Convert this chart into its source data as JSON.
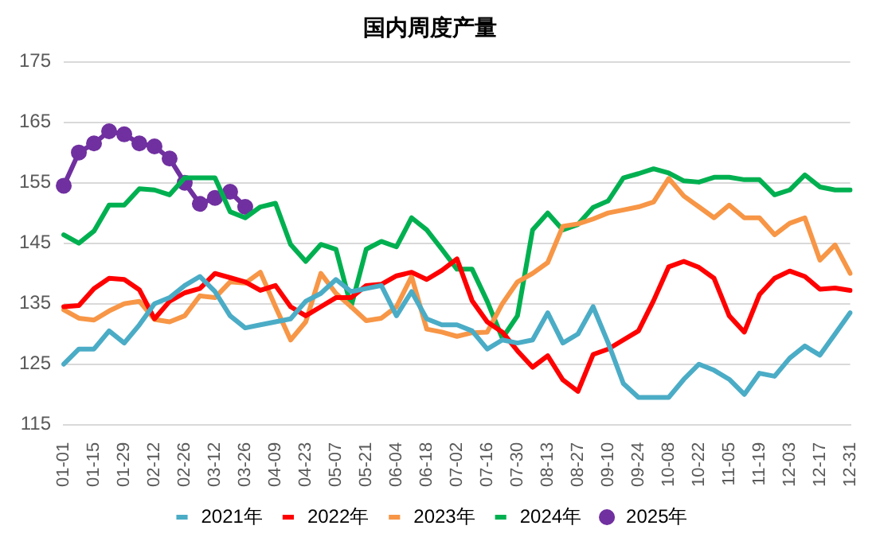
{
  "chart_data": {
    "type": "line",
    "title": "国内周度产量",
    "categories": [
      "01-01",
      null,
      "01-15",
      null,
      "01-29",
      null,
      "02-12",
      null,
      "02-26",
      null,
      "03-12",
      null,
      "03-26",
      null,
      "04-09",
      null,
      "04-23",
      null,
      "05-07",
      null,
      "05-21",
      null,
      "06-04",
      null,
      "06-18",
      null,
      "07-02",
      null,
      "07-16",
      null,
      "07-30",
      null,
      "08-13",
      null,
      "08-27",
      null,
      "09-10",
      null,
      "09-24",
      null,
      "10-08",
      null,
      "10-22",
      null,
      "11-05",
      null,
      "11-19",
      null,
      "12-03",
      null,
      "12-17",
      null,
      "12-31"
    ],
    "series": [
      {
        "name": "2021年",
        "color": "#4bacc6",
        "marker": "none",
        "values": [
          125,
          127.5,
          127.5,
          130.5,
          128.5,
          131.5,
          135,
          136,
          138,
          139.5,
          137,
          133,
          131,
          131.5,
          132,
          132.5,
          135.4,
          136.7,
          139,
          137,
          137.5,
          138,
          133,
          137,
          132.5,
          131.5,
          131.5,
          130.5,
          127.5,
          129,
          128.5,
          129,
          133.5,
          128.5,
          130,
          134.5,
          128.5,
          121.8,
          119.5,
          119.5,
          119.5,
          122.5,
          125,
          124,
          122.5,
          120,
          123.5,
          123,
          126,
          128,
          126.5,
          130,
          133.5
        ]
      },
      {
        "name": "2022年",
        "color": "#ff0000",
        "marker": "none",
        "values": [
          134.5,
          134.7,
          137.5,
          139.2,
          139,
          137.3,
          132.5,
          135.4,
          136.8,
          137.5,
          140,
          139.3,
          138.6,
          137.2,
          138,
          134.5,
          133,
          134.5,
          136,
          136,
          138,
          138.2,
          139.6,
          140.2,
          139,
          140.5,
          142.4,
          135.5,
          132,
          130.3,
          127.2,
          124.5,
          126.4,
          122.4,
          120.5,
          126.6,
          127.5,
          129,
          130.5,
          135.5,
          141.1,
          142,
          141,
          139.2,
          133,
          130.3,
          136.5,
          139.2,
          140.4,
          139.5,
          137.4,
          137.6,
          137.2
        ]
      },
      {
        "name": "2023年",
        "color": "#f79646",
        "marker": "none",
        "values": [
          134,
          132.6,
          132.3,
          133.8,
          135,
          135.4,
          132.4,
          132,
          133,
          136.3,
          136,
          138.6,
          138.4,
          140.2,
          134.5,
          129,
          132,
          140,
          136.7,
          134.5,
          132.2,
          132.6,
          134.5,
          139.5,
          130.8,
          130.3,
          129.6,
          130.2,
          130.3,
          135,
          138.6,
          140,
          141.8,
          147.8,
          148.2,
          149,
          150,
          150.5,
          151,
          151.8,
          155.7,
          152.8,
          151,
          149.2,
          151.3,
          149.2,
          149.2,
          146.4,
          148.3,
          149.2,
          142.2,
          144.7,
          140
        ]
      },
      {
        "name": "2024年",
        "color": "#00b050",
        "marker": "none",
        "values": [
          146.4,
          145,
          147,
          151.3,
          151.3,
          154,
          153.8,
          153,
          155.8,
          155.8,
          155.8,
          150.2,
          149.2,
          151,
          151.6,
          144.8,
          142,
          144.8,
          144,
          134.5,
          144,
          145.3,
          144.4,
          149.2,
          147.2,
          144,
          140.7,
          140.7,
          135.4,
          129.3,
          133,
          147.2,
          150,
          147.2,
          148.1,
          150.9,
          152,
          155.8,
          156.5,
          157.3,
          156.6,
          155.3,
          155.1,
          155.9,
          155.9,
          155.5,
          155.5,
          153,
          153.8,
          156.3,
          154.3,
          153.8,
          153.8
        ]
      },
      {
        "name": "2025年",
        "color": "#7030a0",
        "marker": "circle",
        "values": [
          154.5,
          160,
          161.5,
          163.5,
          163,
          161.5,
          161,
          159,
          155,
          151.5,
          152.5,
          153.5,
          151,
          null,
          null,
          null,
          null,
          null,
          null,
          null,
          null,
          null,
          null,
          null,
          null,
          null,
          null,
          null,
          null,
          null,
          null,
          null,
          null,
          null,
          null,
          null,
          null,
          null,
          null,
          null,
          null,
          null,
          null,
          null,
          null,
          null,
          null,
          null,
          null,
          null,
          null,
          null,
          null
        ]
      }
    ],
    "ylim": [
      115,
      175
    ],
    "yticks": [
      115,
      125,
      135,
      145,
      155,
      165,
      175
    ],
    "grid": "y",
    "legend": "bottom",
    "line_style": "solid"
  }
}
